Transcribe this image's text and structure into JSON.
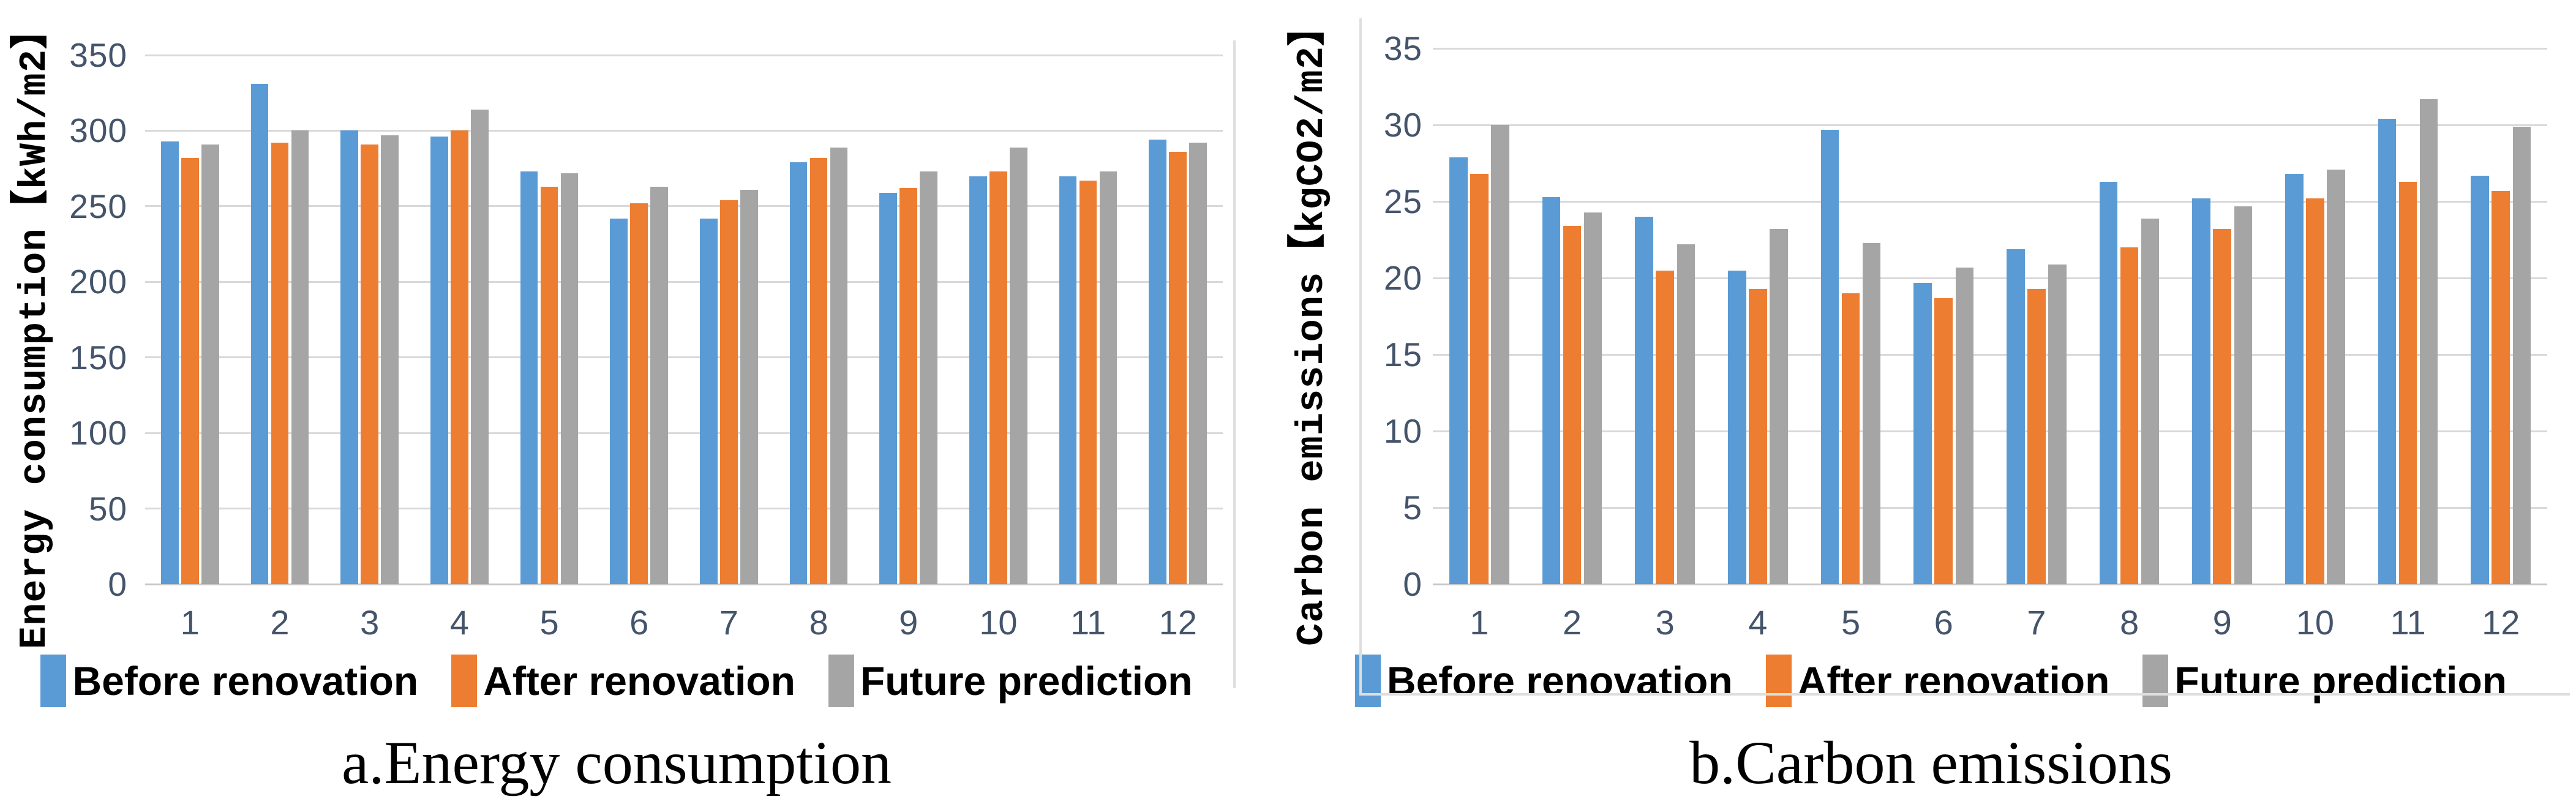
{
  "figure": {
    "description": "Two grouped bar charts comparing monthly values before renovation, after renovation, and future prediction",
    "colors": {
      "before_renovation": "#5B9BD5",
      "after_renovation": "#ED7D31",
      "future_prediction": "#A5A5A5",
      "gridline": "#D9D9D9",
      "axis_line": "#C6C6C6",
      "tick_text": "#44546A",
      "panel_border": "#DEDEDE"
    },
    "legend_labels": [
      "Before renovation",
      "After renovation",
      "Future prediction"
    ]
  },
  "chart_data": [
    {
      "type": "bar",
      "title": "a.Energy consumption",
      "y_axis_title": "Energy consumption【kWh/m2】",
      "xlabel": "",
      "ylabel": "Energy consumption【kWh/m2】",
      "categories": [
        "1",
        "2",
        "3",
        "4",
        "5",
        "6",
        "7",
        "8",
        "9",
        "10",
        "11",
        "12"
      ],
      "ylim": [
        0,
        350
      ],
      "ytick_step": 50,
      "yticks": [
        0,
        50,
        100,
        150,
        200,
        250,
        300,
        350
      ],
      "grid": true,
      "legend_position": "bottom",
      "series": [
        {
          "name": "Before renovation",
          "color": "#5B9BD5",
          "values": [
            293,
            331,
            300,
            296,
            273,
            242,
            242,
            279,
            259,
            270,
            270,
            294
          ]
        },
        {
          "name": "After renovation",
          "color": "#ED7D31",
          "values": [
            282,
            292,
            291,
            300,
            263,
            252,
            254,
            282,
            262,
            273,
            267,
            286
          ]
        },
        {
          "name": "Future prediction",
          "color": "#A5A5A5",
          "values": [
            291,
            300,
            297,
            314,
            272,
            263,
            261,
            289,
            273,
            289,
            273,
            292
          ]
        }
      ]
    },
    {
      "type": "bar",
      "title": "b.Carbon emissions",
      "y_axis_title": "Carbon emissions【kgCO2/m2】",
      "xlabel": "",
      "ylabel": "Carbon emissions【kgCO2/m2】",
      "categories": [
        "1",
        "2",
        "3",
        "4",
        "5",
        "6",
        "7",
        "8",
        "9",
        "10",
        "11",
        "12"
      ],
      "ylim": [
        0,
        35
      ],
      "ytick_step": 5,
      "yticks": [
        0,
        5,
        10,
        15,
        20,
        25,
        30,
        35
      ],
      "grid": true,
      "legend_position": "bottom",
      "series": [
        {
          "name": "Before renovation",
          "color": "#5B9BD5",
          "values": [
            27.9,
            25.3,
            24.0,
            20.5,
            29.7,
            19.7,
            21.9,
            26.3,
            25.2,
            26.8,
            30.4,
            26.7
          ]
        },
        {
          "name": "After renovation",
          "color": "#ED7D31",
          "values": [
            26.8,
            23.4,
            20.5,
            19.3,
            19.0,
            18.7,
            19.3,
            22.0,
            23.2,
            25.2,
            26.3,
            25.7
          ]
        },
        {
          "name": "Future prediction",
          "color": "#A5A5A5",
          "values": [
            30.0,
            24.3,
            22.2,
            23.2,
            22.3,
            20.7,
            20.9,
            23.9,
            24.7,
            27.1,
            31.7,
            29.9
          ]
        }
      ]
    }
  ]
}
